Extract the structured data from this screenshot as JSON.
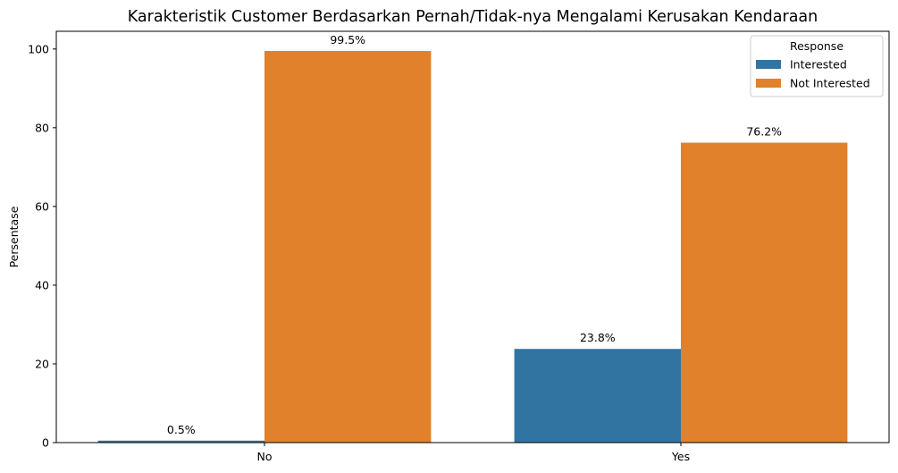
{
  "chart_data": {
    "type": "bar",
    "title": "Karakteristik Customer Berdasarkan Pernah/Tidak-nya Mengalami Kerusakan Kendaraan",
    "xlabel": "",
    "ylabel": "Persentase",
    "categories": [
      "No",
      "Yes"
    ],
    "ylim": [
      0,
      104.5
    ],
    "yticks": [
      0,
      20,
      40,
      60,
      80,
      100
    ],
    "series": [
      {
        "name": "Interested",
        "color": "#3274a1",
        "values": [
          0.5,
          23.8
        ],
        "labels": [
          "0.5%",
          "23.8%"
        ]
      },
      {
        "name": "Not Interested",
        "color": "#e1812c",
        "values": [
          99.5,
          76.2
        ],
        "labels": [
          "99.5%",
          "76.2%"
        ]
      }
    ],
    "legend": {
      "title": "Response",
      "placement": "top-right"
    },
    "grid": false
  }
}
